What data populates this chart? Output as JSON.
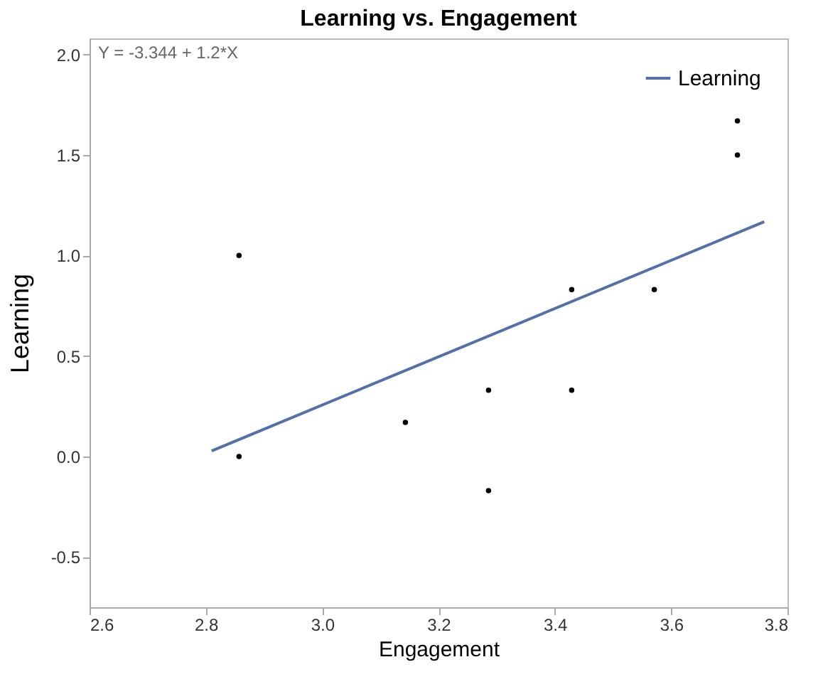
{
  "chart_data": {
    "type": "scatter",
    "title": "Learning vs. Engagement",
    "xlabel": "Engagement",
    "ylabel": "Learning",
    "annotations": [
      "Y = -3.344 + 1.2*X"
    ],
    "xlim": [
      2.6,
      3.8
    ],
    "xticks": [
      2.6,
      2.8,
      {
        "value": 3,
        "label": "3.0"
      },
      3.2,
      3.4,
      3.6,
      3.8
    ],
    "ylim": [
      -0.75,
      2.08
    ],
    "yticks": [
      -0.5,
      {
        "value": 0,
        "label": "0.0"
      },
      0.5,
      {
        "value": 1,
        "label": "1.0"
      },
      1.5,
      {
        "value": 2,
        "label": "2.0"
      }
    ],
    "grid": false,
    "legend": "top right",
    "series": [
      {
        "marker": "circle",
        "color": "#000000",
        "x": [
          2.857,
          2.857,
          3.143,
          3.286,
          3.286,
          3.429,
          3.429,
          3.571,
          3.714,
          3.714
        ],
        "values": [
          1.0,
          0.0,
          0.17,
          0.33,
          -0.17,
          0.83,
          0.33,
          0.83,
          1.67,
          1.5
        ]
      },
      {
        "type": "line",
        "marker": "none",
        "name": "Learning",
        "color": "#5470a8",
        "x": [
          2.81,
          3.76
        ],
        "values": [
          0.028,
          1.168
        ]
      }
    ]
  }
}
